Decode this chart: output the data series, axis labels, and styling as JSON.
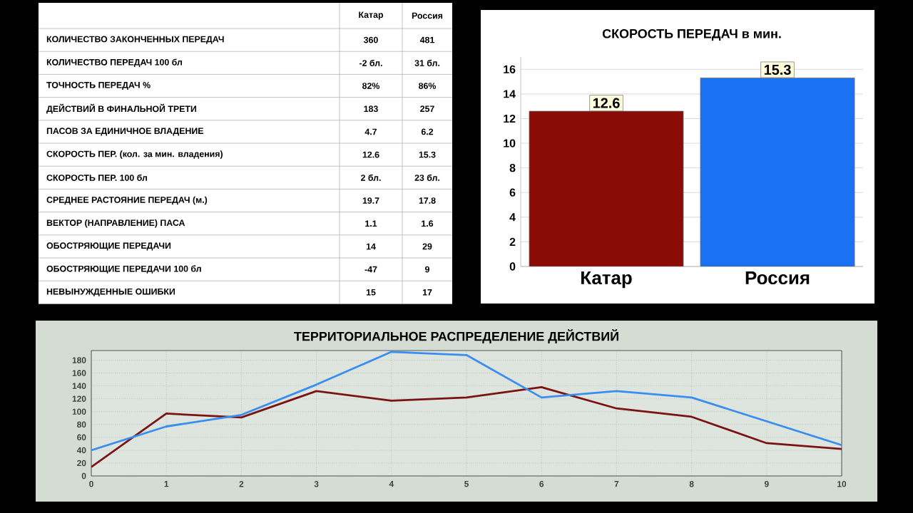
{
  "chart_data": [
    {
      "type": "other",
      "annotations": [
        "Катар",
        "Россия",
        "КОЛИЧЕСТВО ЗАКОНЧЕННЫХ ПЕРЕДАЧ",
        "360",
        "481",
        "КОЛИЧЕСТВО ПЕРЕДАЧ 100 бл",
        "-2 бл.",
        "31 бл.",
        "ТОЧНОСТЬ ПЕРЕДАЧ %",
        "82%",
        "86%",
        "ДЕЙСТВИЙ В ФИНАЛЬНОЙ ТРЕТИ",
        "183",
        "257",
        "ПАСОВ ЗА ЕДИНИЧНОЕ ВЛАДЕНИЕ",
        "4.7",
        "6.2",
        "СКОРОСТЬ ПЕР. (кол. за мин. владения)",
        "12.6",
        "15.3",
        "СКОРОСТЬ ПЕР. 100 бл",
        "2 бл.",
        "23 бл.",
        "СРЕДНЕЕ РАСТОЯНИЕ ПЕРЕДАЧ (м.)",
        "19.7",
        "17.8",
        "ВЕКТОР (НАПРАВЛЕНИЕ) ПАСА",
        "1.1",
        "1.6",
        "ОБОСТРЯЮЩИЕ ПЕРЕДАЧИ",
        "14",
        "29",
        "ОБОСТРЯЮЩИЕ ПЕРЕДАЧИ 100 бл",
        "-47",
        "9",
        "НЕВЫНУЖДЕННЫЕ ОШИБКИ",
        "15",
        "17"
      ]
    },
    {
      "type": "bar",
      "title": "СКОРОСТЬ ПЕРЕДАЧ в мин.",
      "categories": [
        "Катар",
        "Россия"
      ],
      "values": [
        12.6,
        15.3
      ],
      "colors": [
        "#8b0c05",
        "#1a72f2"
      ],
      "ylim": [
        0,
        17
      ],
      "yticks": [
        0,
        2,
        4,
        6,
        8,
        10,
        12,
        14,
        16
      ],
      "grid": "y",
      "data_labels": true
    },
    {
      "type": "line",
      "title": "ТЕРРИТОРИАЛЬНОЕ РАСПРЕДЕЛЕНИЕ ДЕЙСТВИЙ",
      "x": [
        0,
        1,
        2,
        3,
        4,
        5,
        6,
        7,
        8,
        9,
        10
      ],
      "xlim": [
        0,
        10
      ],
      "xticks": [
        0,
        1,
        2,
        3,
        4,
        5,
        6,
        7,
        8,
        9,
        10
      ],
      "ylim": [
        0,
        195
      ],
      "yticks": [
        0,
        20,
        40,
        60,
        80,
        100,
        120,
        140,
        160,
        180
      ],
      "grid": true,
      "series": [
        {
          "color": "#7a1414",
          "values": [
            14,
            97,
            91,
            132,
            117,
            122,
            138,
            105,
            92,
            51,
            42
          ]
        },
        {
          "color": "#3a8ef0",
          "values": [
            40,
            77,
            95,
            142,
            193,
            188,
            122,
            132,
            122,
            85,
            48
          ]
        }
      ]
    }
  ]
}
